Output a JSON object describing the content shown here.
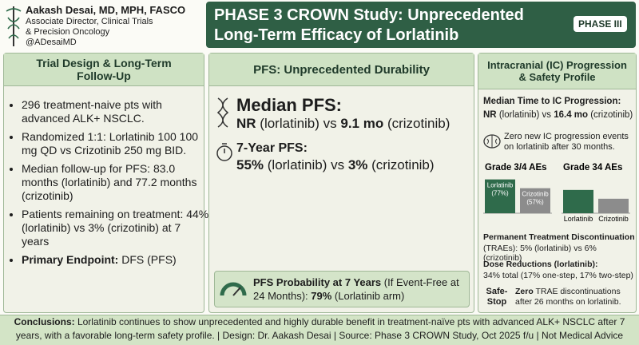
{
  "header": {
    "author": "Aakash Desai, MD, MPH, FASCO",
    "role": "Associate Director, Clinical Trials",
    "role2": "& Precision Oncology",
    "handle": "@ADesaiMD",
    "title_line1": "PHASE 3 CROWN Study: Unprecedented",
    "title_line2": "Long-Term Efficacy of Lorlatinib",
    "badge": "PHASE III"
  },
  "left": {
    "title": "Trial Design & Long-Term Follow-Up",
    "bullets": [
      [
        {
          "t": "296 treatment-naive pts with advanced ALK+ NSCLC."
        }
      ],
      [
        {
          "t": "Randomized 1:1: Lorlatinib 100 100 mg QD vs Crizotinib 250 mg BID."
        }
      ],
      [
        {
          "t": "Median follow-up for PFS: 83.0 months (lorlatinib) and 77.2 months (crizotinib)"
        }
      ],
      [
        {
          "t": "Patients remaining on treatment: 44% (lorlatinib) vs 3% (crizotinib) at 7 years"
        }
      ],
      [
        {
          "t": "Primary Endpoint:",
          "bold": true
        },
        {
          "t": " DFS (PFS)"
        }
      ]
    ]
  },
  "middle": {
    "title": "PFS: Unprecedented Durability",
    "median_label": "Median PFS:",
    "median_line": [
      {
        "t": "NR",
        "bold": true
      },
      {
        "t": " (lorlatinib) vs "
      },
      {
        "t": "9.1 mo",
        "bold": true
      },
      {
        "t": " (crizotinib)"
      }
    ],
    "seven_label": "7-Year PFS:",
    "seven_line": [
      {
        "t": "55%",
        "bold": true
      },
      {
        "t": " (lorlatinib) vs "
      },
      {
        "t": "3%",
        "bold": true
      },
      {
        "t": " (crizotinib)"
      }
    ],
    "probability": [
      {
        "t": "PFS Probability at 7 Years",
        "bold": true
      },
      {
        "t": " (If Event-Free at 24 Months): "
      },
      {
        "t": "79%",
        "bold": true
      },
      {
        "t": " (Lorlatinib arm)"
      }
    ]
  },
  "right": {
    "title": "Intracranial (IC) Progression & Safety Profile",
    "ic_label": "Median Time to IC Progression:",
    "ic_line": [
      {
        "t": "NR",
        "bold": true
      },
      {
        "t": " (lorlatinib) vs "
      },
      {
        "t": "16.4 mo",
        "bold": true
      },
      {
        "t": " (crizotinib)"
      }
    ],
    "ic_note": "Zero new IC progression events on lorlatinib after 30 months.",
    "charts": [
      {
        "title": "Grade 3/4 AEs",
        "categories": [
          "Lorlatinib",
          "Crizotinib"
        ],
        "values": [
          77,
          57
        ],
        "value_labels": [
          "(77%)",
          "(57%)"
        ],
        "colors": [
          "#2f6b4b",
          "#8c8c8c"
        ],
        "labels_inside": true
      },
      {
        "title": "Grade 34 AEs",
        "categories": [
          "Lorlatinib",
          "Crizotinib"
        ],
        "values": [
          53,
          33
        ],
        "colors": [
          "#2f6b4b",
          "#8c8c8c"
        ],
        "labels_inside": false
      }
    ],
    "disc_label": "Permanent Treatment Discontinuation",
    "disc_line": "(TRAEs): 5% (lorlatinib) vs 6% (crizotinib)",
    "dose_label": "Dose Reductions (lorlatinib):",
    "dose_line": "34% total (17% one-step, 17% two-step)",
    "safe_label": "Safe-Stop",
    "safe_line": [
      {
        "t": "Zero",
        "bold": true
      },
      {
        "t": " TRAE discontinuations after 26 months on lorlatinib."
      }
    ]
  },
  "footer": [
    {
      "t": "Conclusions:",
      "bold": true
    },
    {
      "t": " Lorlatinib continues to show unprecedented and highly durable benefit in treatment-naïve pts with advanced ALK+ NSCLC after 7 years, with a favorable long-term safety profile. | Design: Dr. Aakash Desai | Source: Phase 3 CROWN Study, Oct 2025 f/u | Not Medical Advice"
    }
  ]
}
